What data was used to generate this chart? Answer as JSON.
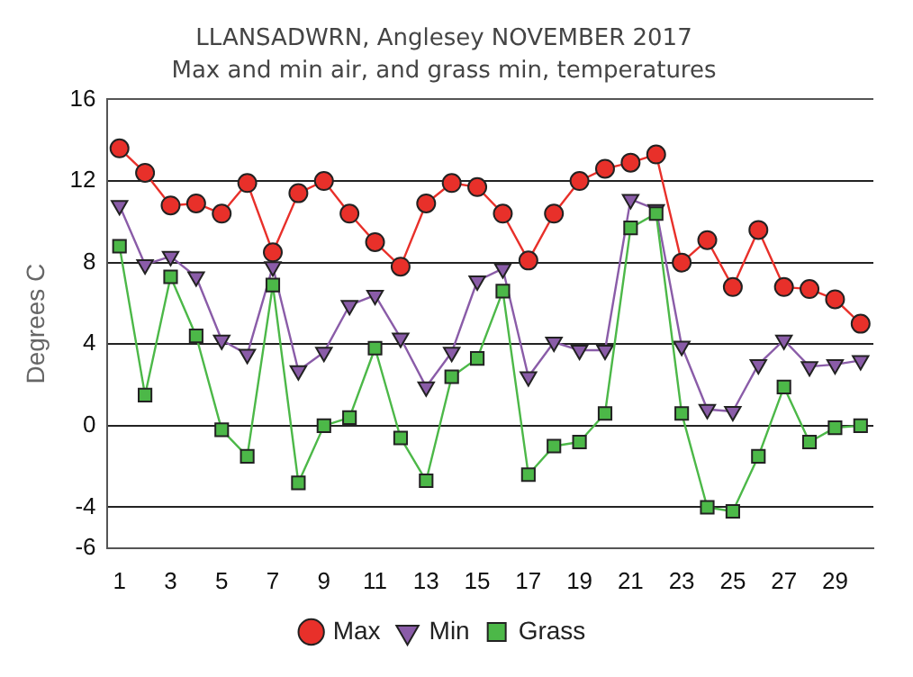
{
  "chart_data": {
    "type": "line",
    "title": "LLANSADWRN, Anglesey NOVEMBER 2017",
    "subtitle": "Max and min air, and grass min, temperatures",
    "ylabel": "Degrees C",
    "x": [
      1,
      2,
      3,
      4,
      5,
      6,
      7,
      8,
      9,
      10,
      11,
      12,
      13,
      14,
      15,
      16,
      17,
      18,
      19,
      20,
      21,
      22,
      23,
      24,
      25,
      26,
      27,
      28,
      29,
      30
    ],
    "xlim": [
      0.5,
      30.5
    ],
    "xticks": [
      1,
      3,
      5,
      7,
      9,
      11,
      13,
      15,
      17,
      19,
      21,
      23,
      25,
      27,
      29
    ],
    "series": [
      {
        "name": "Max",
        "color": "#e8302a",
        "marker": "circle",
        "values": [
          13.6,
          12.4,
          10.8,
          10.9,
          10.4,
          11.9,
          8.5,
          11.4,
          12.0,
          10.4,
          9.0,
          7.8,
          10.9,
          11.9,
          11.7,
          10.4,
          8.1,
          10.4,
          12.0,
          12.6,
          12.9,
          13.3,
          8.0,
          9.1,
          6.8,
          9.6,
          6.8,
          6.7,
          6.2,
          5.0
        ]
      },
      {
        "name": "Min",
        "color": "#8a5ca8",
        "marker": "triangle",
        "values": [
          10.8,
          7.9,
          8.3,
          7.3,
          4.2,
          3.5,
          7.8,
          2.7,
          3.6,
          5.9,
          6.4,
          4.3,
          1.9,
          3.6,
          7.1,
          7.7,
          2.4,
          4.1,
          3.7,
          3.7,
          11.1,
          10.6,
          3.9,
          0.8,
          0.7,
          3.0,
          4.2,
          2.9,
          3.0,
          3.2
        ]
      },
      {
        "name": "Grass",
        "color": "#4cb848",
        "marker": "square",
        "values": [
          8.8,
          1.5,
          7.3,
          4.4,
          -0.2,
          -1.5,
          6.9,
          -2.8,
          0.0,
          0.4,
          3.8,
          -0.6,
          -2.7,
          2.4,
          3.3,
          6.6,
          -2.4,
          -1.0,
          -0.8,
          0.6,
          9.7,
          10.4,
          0.6,
          -4.0,
          -4.2,
          -1.5,
          1.9,
          -0.8,
          -0.1,
          0.0
        ]
      }
    ],
    "ylim": [
      -6,
      16
    ],
    "yticks": [
      -6,
      -4,
      0,
      4,
      8,
      12,
      16
    ],
    "grid": "y",
    "legend": "bottom",
    "line_style": "solid"
  }
}
